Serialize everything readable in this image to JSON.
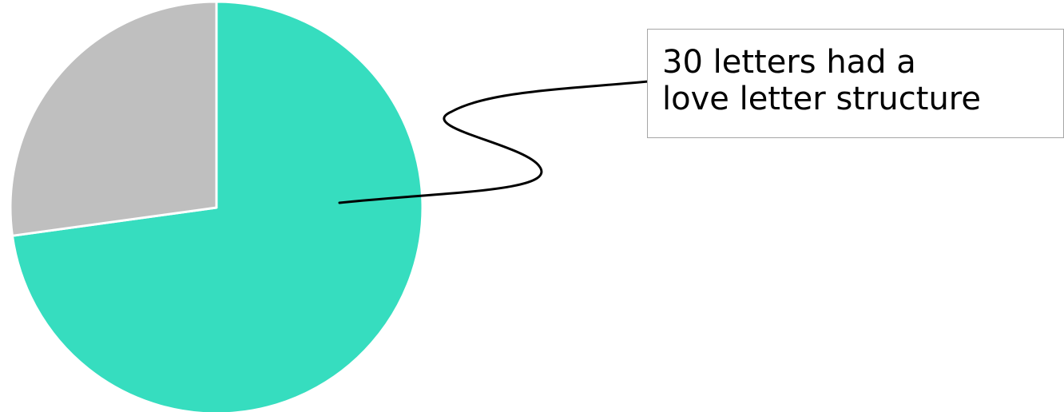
{
  "chart_data": {
    "type": "pie",
    "title": "",
    "categories": [
      "",
      ""
    ],
    "values": [
      30,
      11.2
    ],
    "colors": [
      "#36ddbf",
      "#bfbfbf"
    ],
    "start_angle_deg": 0,
    "direction": "clockwise",
    "annotation": {
      "lines": [
        "30 letters had a",
        "love letter structure"
      ],
      "points_to_slice": 0
    }
  },
  "colors": {
    "slice_border": "#ffffff",
    "callout_border": "#a6a6a6",
    "leader_line": "#000000"
  }
}
